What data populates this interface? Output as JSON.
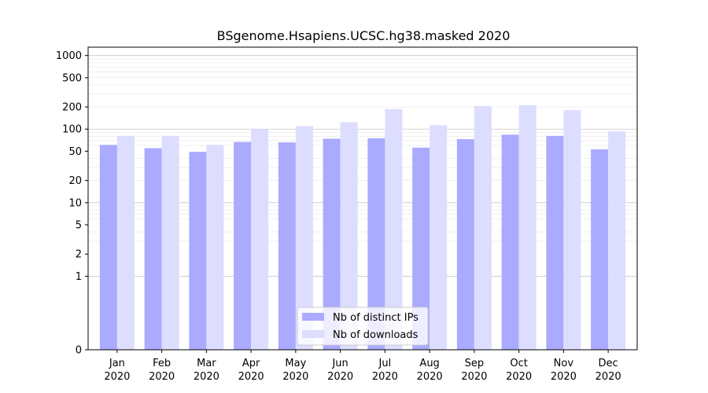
{
  "chart_data": {
    "type": "bar",
    "title": "BSgenome.Hsapiens.UCSC.hg38.masked 2020",
    "xlabel": "",
    "ylabel": "",
    "y_scale": "symlog",
    "ylim": [
      0,
      1300
    ],
    "y_ticks": [
      0,
      1,
      2,
      5,
      10,
      20,
      50,
      100,
      200,
      500,
      1000
    ],
    "y_tick_labels": [
      "0",
      "1",
      "2",
      "5",
      "10",
      "20",
      "50",
      "100",
      "200",
      "500",
      "1000"
    ],
    "categories": [
      "Jan\n2020",
      "Feb\n2020",
      "Mar\n2020",
      "Apr\n2020",
      "May\n2020",
      "Jun\n2020",
      "Jul\n2020",
      "Aug\n2020",
      "Sep\n2020",
      "Oct\n2020",
      "Nov\n2020",
      "Dec\n2020"
    ],
    "series": [
      {
        "name": "Nb of distinct IPs",
        "color": "#aaaaff",
        "values": [
          61,
          55,
          49,
          67,
          66,
          74,
          75,
          56,
          73,
          84,
          81,
          53
        ]
      },
      {
        "name": "Nb of downloads",
        "color": "#ddddff",
        "values": [
          81,
          81,
          61,
          100,
          110,
          124,
          187,
          113,
          206,
          211,
          181,
          93
        ]
      }
    ],
    "grid": true,
    "legend": "lower center"
  }
}
